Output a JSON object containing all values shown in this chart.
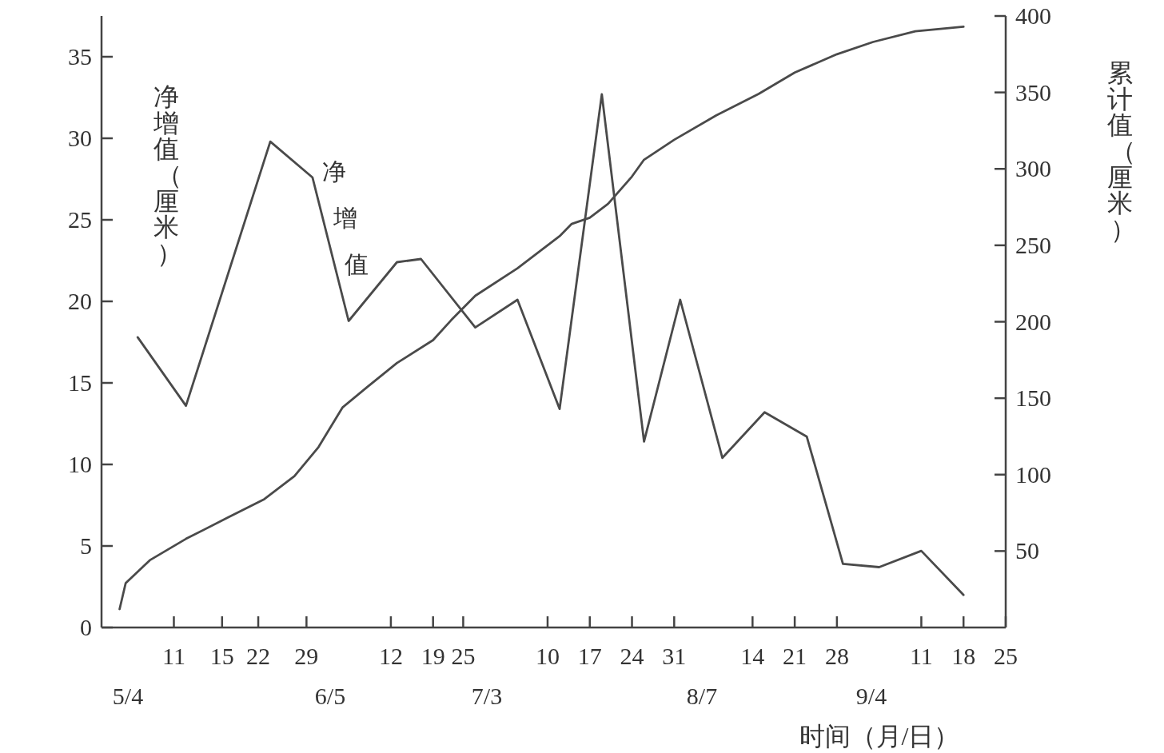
{
  "chart_data": {
    "type": "line",
    "xlabel": "时间（月/日）",
    "ylabel": "净增值（厘米）",
    "y2label": "累计值（厘米）",
    "xlim": [
      "--04-29",
      "--09-26"
    ],
    "ylim": [
      0,
      37.5
    ],
    "y2lim": [
      0,
      400
    ],
    "yticks": [
      0,
      5,
      10,
      15,
      20,
      25,
      30,
      35
    ],
    "y2ticks": [
      50,
      100,
      150,
      200,
      250,
      300,
      350,
      400
    ],
    "annotations": [
      "5/4",
      "6/5",
      "7/3",
      "8/7",
      "9/4"
    ],
    "xticks": [
      {
        "value": "--05-11",
        "label": "11"
      },
      {
        "value": "--05-19",
        "label": "15"
      },
      {
        "value": "--05-25",
        "label": "22"
      },
      {
        "value": "--06-02",
        "label": "29"
      },
      {
        "value": "--06-16",
        "label": "12"
      },
      {
        "value": "--06-23",
        "label": "19"
      },
      {
        "value": "--06-28",
        "label": "25"
      },
      {
        "value": "--07-12",
        "label": "10"
      },
      {
        "value": "--07-19",
        "label": "17"
      },
      {
        "value": "--07-26",
        "label": "24"
      },
      {
        "value": "--08-02",
        "label": "31"
      },
      {
        "value": "--08-15",
        "label": "14"
      },
      {
        "value": "--08-22",
        "label": "21"
      },
      {
        "value": "--08-29",
        "label": "28"
      },
      {
        "value": "--09-12",
        "label": "11"
      },
      {
        "value": "--09-19",
        "label": "18"
      },
      {
        "value": "--09-26",
        "label": "25"
      }
    ],
    "grid": false,
    "legend": false,
    "marker": "none",
    "line_style": "solid",
    "series": [
      {
        "name": "净增值",
        "color": "#4a4a4a",
        "x": [
          "--05-05",
          "--05-13",
          "--05-27",
          "--06-03",
          "--06-09",
          "--06-17",
          "--06-21",
          "--06-30",
          "--07-07",
          "--07-14",
          "--07-21",
          "--07-28",
          "--08-03",
          "--08-10",
          "--08-17",
          "--08-24",
          "--08-30",
          "--09-05",
          "--09-12",
          "--09-19"
        ],
        "values": [
          17.8,
          13.6,
          29.8,
          27.6,
          18.8,
          22.4,
          22.6,
          18.4,
          20.1,
          13.4,
          32.7,
          11.4,
          20.1,
          10.4,
          13.2,
          11.7,
          3.9,
          3.7,
          4.7,
          2.0
        ]
      },
      {
        "color": "#4a4a4a",
        "axis": "y2",
        "x": [
          "--05-02",
          "--05-03",
          "--05-07",
          "--05-13",
          "--05-20",
          "--05-26",
          "--05-31",
          "--06-04",
          "--06-08",
          "--06-12",
          "--06-17",
          "--06-23",
          "--06-26",
          "--06-30",
          "--07-07",
          "--07-14",
          "--07-16",
          "--07-19",
          "--07-22",
          "--07-26",
          "--07-28",
          "--08-02",
          "--08-09",
          "--08-16",
          "--08-22",
          "--08-29",
          "--09-04",
          "--09-11",
          "--09-19"
        ],
        "values": [
          12,
          29,
          44,
          58,
          72,
          84,
          99,
          118,
          144,
          157,
          173,
          188,
          201,
          217,
          235,
          256,
          264,
          268,
          277,
          295,
          306,
          319,
          335,
          349,
          363,
          375,
          383,
          390,
          393
        ]
      }
    ]
  }
}
